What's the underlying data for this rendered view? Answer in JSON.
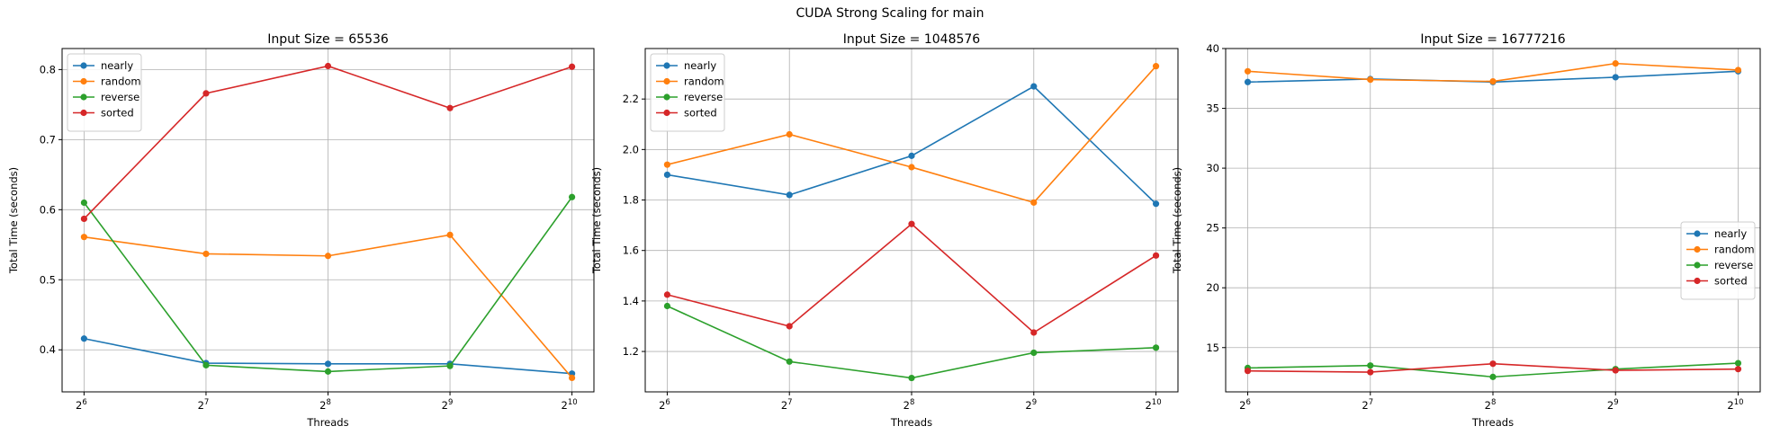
{
  "figure": {
    "title": "CUDA Strong Scaling for main"
  },
  "colors": {
    "nearly": "#1f77b4",
    "random": "#ff7f0e",
    "reverse": "#2ca02c",
    "sorted": "#d62728"
  },
  "chart_data": [
    {
      "type": "line",
      "title": "Input Size = 65536",
      "xlabel": "Threads",
      "ylabel": "Total Time (seconds)",
      "x": [
        64,
        128,
        256,
        512,
        1024
      ],
      "x_tick_labels": [
        [
          "2",
          "6"
        ],
        [
          "2",
          "7"
        ],
        [
          "2",
          "8"
        ],
        [
          "2",
          "9"
        ],
        [
          "2",
          "10"
        ]
      ],
      "x_scale": "log2",
      "ylim": [
        0.34,
        0.83
      ],
      "yticks": [
        0.4,
        0.5,
        0.6,
        0.7,
        0.8
      ],
      "ytick_labels": [
        "0.4",
        "0.5",
        "0.6",
        "0.7",
        "0.8"
      ],
      "grid": true,
      "legend": "upper-left",
      "series": [
        {
          "name": "nearly",
          "values": [
            0.416,
            0.381,
            0.38,
            0.38,
            0.366
          ]
        },
        {
          "name": "random",
          "values": [
            0.561,
            0.537,
            0.534,
            0.564,
            0.36
          ]
        },
        {
          "name": "reverse",
          "values": [
            0.61,
            0.378,
            0.369,
            0.377,
            0.618
          ]
        },
        {
          "name": "sorted",
          "values": [
            0.587,
            0.766,
            0.805,
            0.745,
            0.804
          ]
        }
      ]
    },
    {
      "type": "line",
      "title": "Input Size = 1048576",
      "xlabel": "Threads",
      "ylabel": "Total Time (seconds)",
      "x": [
        64,
        128,
        256,
        512,
        1024
      ],
      "x_tick_labels": [
        [
          "2",
          "6"
        ],
        [
          "2",
          "7"
        ],
        [
          "2",
          "8"
        ],
        [
          "2",
          "9"
        ],
        [
          "2",
          "10"
        ]
      ],
      "x_scale": "log2",
      "ylim": [
        1.04,
        2.4
      ],
      "yticks": [
        1.2,
        1.4,
        1.6,
        1.8,
        2.0,
        2.2
      ],
      "ytick_labels": [
        "1.2",
        "1.4",
        "1.6",
        "1.8",
        "2.0",
        "2.2"
      ],
      "grid": true,
      "legend": "upper-left",
      "series": [
        {
          "name": "nearly",
          "values": [
            1.9,
            1.82,
            1.975,
            2.25,
            1.785
          ]
        },
        {
          "name": "random",
          "values": [
            1.94,
            2.06,
            1.93,
            1.79,
            2.33
          ]
        },
        {
          "name": "reverse",
          "values": [
            1.38,
            1.16,
            1.095,
            1.195,
            1.215
          ]
        },
        {
          "name": "sorted",
          "values": [
            1.425,
            1.3,
            1.705,
            1.275,
            1.58
          ]
        }
      ]
    },
    {
      "type": "line",
      "title": "Input Size = 16777216",
      "xlabel": "Threads",
      "ylabel": "Total Time (seconds)",
      "x": [
        64,
        128,
        256,
        512,
        1024
      ],
      "x_tick_labels": [
        [
          "2",
          "6"
        ],
        [
          "2",
          "7"
        ],
        [
          "2",
          "8"
        ],
        [
          "2",
          "9"
        ],
        [
          "2",
          "10"
        ]
      ],
      "x_scale": "log2",
      "ylim": [
        11.3,
        40.0
      ],
      "yticks": [
        15,
        20,
        25,
        30,
        35,
        40
      ],
      "ytick_labels": [
        "15",
        "20",
        "25",
        "30",
        "35",
        "40"
      ],
      "grid": true,
      "legend": "center-right",
      "series": [
        {
          "name": "nearly",
          "values": [
            37.2,
            37.45,
            37.2,
            37.6,
            38.1
          ]
        },
        {
          "name": "random",
          "values": [
            38.1,
            37.4,
            37.25,
            38.75,
            38.2
          ]
        },
        {
          "name": "reverse",
          "values": [
            13.3,
            13.5,
            12.55,
            13.2,
            13.7
          ]
        },
        {
          "name": "sorted",
          "values": [
            13.05,
            12.95,
            13.65,
            13.1,
            13.2
          ]
        }
      ]
    }
  ]
}
